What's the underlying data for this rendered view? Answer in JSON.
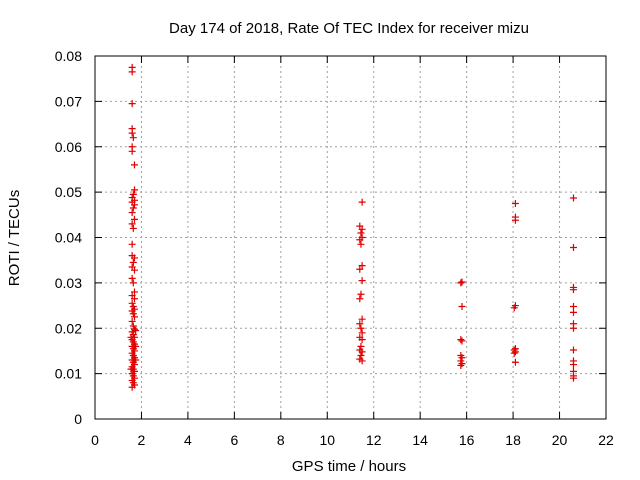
{
  "chart_data": {
    "type": "scatter",
    "title": "Day 174 of 2018, Rate Of TEC Index for receiver mizu",
    "xlabel": "GPS time / hours",
    "ylabel": "ROTI / TECUs",
    "xlim": [
      0,
      22
    ],
    "ylim": [
      0,
      0.08
    ],
    "xticks": [
      0,
      2,
      4,
      6,
      8,
      10,
      12,
      14,
      16,
      18,
      20,
      22
    ],
    "yticks": [
      0,
      0.01,
      0.02,
      0.03,
      0.04,
      0.05,
      0.06,
      0.07,
      0.08
    ],
    "xtick_labels": [
      "0",
      "2",
      "4",
      "6",
      "8",
      "10",
      "12",
      "14",
      "16",
      "18",
      "20",
      "22"
    ],
    "ytick_labels": [
      "0",
      "0.01",
      "0.02",
      "0.03",
      "0.04",
      "0.05",
      "0.06",
      "0.07",
      "0.08"
    ],
    "grid": true,
    "marker": "plus",
    "color": "#e00000",
    "series": [
      {
        "name": "ROTI",
        "points": [
          [
            1.6,
            0.0775
          ],
          [
            1.6,
            0.0765
          ],
          [
            1.6,
            0.0695
          ],
          [
            1.6,
            0.064
          ],
          [
            1.6,
            0.063
          ],
          [
            1.65,
            0.062
          ],
          [
            1.6,
            0.06
          ],
          [
            1.6,
            0.059
          ],
          [
            1.7,
            0.056
          ],
          [
            1.7,
            0.0505
          ],
          [
            1.65,
            0.0495
          ],
          [
            1.6,
            0.0488
          ],
          [
            1.7,
            0.0482
          ],
          [
            1.6,
            0.0478
          ],
          [
            1.7,
            0.0472
          ],
          [
            1.65,
            0.0465
          ],
          [
            1.6,
            0.0455
          ],
          [
            1.7,
            0.044
          ],
          [
            1.6,
            0.043
          ],
          [
            1.65,
            0.042
          ],
          [
            1.6,
            0.0385
          ],
          [
            1.6,
            0.036
          ],
          [
            1.7,
            0.0355
          ],
          [
            1.65,
            0.0345
          ],
          [
            1.6,
            0.0335
          ],
          [
            1.7,
            0.0328
          ],
          [
            1.6,
            0.031
          ],
          [
            1.65,
            0.03
          ],
          [
            1.7,
            0.028
          ],
          [
            1.6,
            0.0272
          ],
          [
            1.7,
            0.0265
          ],
          [
            1.6,
            0.0255
          ],
          [
            1.65,
            0.0248
          ],
          [
            1.7,
            0.0242
          ],
          [
            1.6,
            0.0238
          ],
          [
            1.65,
            0.0232
          ],
          [
            1.7,
            0.0225
          ],
          [
            1.6,
            0.0215
          ],
          [
            1.65,
            0.0205
          ],
          [
            1.7,
            0.0198
          ],
          [
            1.6,
            0.0192
          ],
          [
            1.65,
            0.0186
          ],
          [
            1.7,
            0.018
          ],
          [
            1.6,
            0.0175
          ],
          [
            1.65,
            0.017
          ],
          [
            1.7,
            0.0165
          ],
          [
            1.6,
            0.016
          ],
          [
            1.65,
            0.0155
          ],
          [
            1.7,
            0.015
          ],
          [
            1.6,
            0.0145
          ],
          [
            1.65,
            0.014
          ],
          [
            1.7,
            0.0135
          ],
          [
            1.6,
            0.013
          ],
          [
            1.65,
            0.0125
          ],
          [
            1.7,
            0.012
          ],
          [
            1.6,
            0.0115
          ],
          [
            1.65,
            0.011
          ],
          [
            1.7,
            0.0105
          ],
          [
            1.6,
            0.01
          ],
          [
            1.65,
            0.0095
          ],
          [
            1.7,
            0.009
          ],
          [
            1.6,
            0.0085
          ],
          [
            1.65,
            0.008
          ],
          [
            1.7,
            0.0075
          ],
          [
            1.6,
            0.007
          ],
          [
            1.75,
            0.016
          ],
          [
            1.75,
            0.013
          ],
          [
            1.55,
            0.018
          ],
          [
            1.55,
            0.011
          ],
          [
            1.75,
            0.0195
          ],
          [
            11.5,
            0.0478
          ],
          [
            11.4,
            0.0425
          ],
          [
            11.5,
            0.0418
          ],
          [
            11.45,
            0.041
          ],
          [
            11.5,
            0.04
          ],
          [
            11.4,
            0.0395
          ],
          [
            11.45,
            0.0385
          ],
          [
            11.5,
            0.0338
          ],
          [
            11.4,
            0.033
          ],
          [
            11.5,
            0.0305
          ],
          [
            11.45,
            0.0275
          ],
          [
            11.4,
            0.0265
          ],
          [
            11.5,
            0.022
          ],
          [
            11.4,
            0.021
          ],
          [
            11.45,
            0.02
          ],
          [
            11.5,
            0.019
          ],
          [
            11.4,
            0.018
          ],
          [
            11.5,
            0.0175
          ],
          [
            11.45,
            0.016
          ],
          [
            11.4,
            0.0152
          ],
          [
            11.5,
            0.0148
          ],
          [
            11.45,
            0.014
          ],
          [
            11.4,
            0.0132
          ],
          [
            11.5,
            0.0128
          ],
          [
            15.8,
            0.0302
          ],
          [
            15.75,
            0.03
          ],
          [
            15.8,
            0.0248
          ],
          [
            15.75,
            0.0175
          ],
          [
            15.8,
            0.0172
          ],
          [
            15.75,
            0.014
          ],
          [
            15.8,
            0.0135
          ],
          [
            15.75,
            0.0128
          ],
          [
            15.8,
            0.0122
          ],
          [
            15.75,
            0.0118
          ],
          [
            18.1,
            0.0475
          ],
          [
            18.1,
            0.0445
          ],
          [
            18.1,
            0.0438
          ],
          [
            18.1,
            0.025
          ],
          [
            18.05,
            0.0245
          ],
          [
            18.1,
            0.0155
          ],
          [
            18.05,
            0.0152
          ],
          [
            18.1,
            0.0148
          ],
          [
            18.05,
            0.0145
          ],
          [
            18.1,
            0.0125
          ],
          [
            20.6,
            0.0487
          ],
          [
            20.6,
            0.0378
          ],
          [
            20.6,
            0.029
          ],
          [
            20.6,
            0.0285
          ],
          [
            20.6,
            0.0248
          ],
          [
            20.6,
            0.0235
          ],
          [
            20.6,
            0.021
          ],
          [
            20.6,
            0.02
          ],
          [
            20.6,
            0.0152
          ],
          [
            20.6,
            0.0128
          ],
          [
            20.6,
            0.012
          ],
          [
            20.6,
            0.0105
          ],
          [
            20.6,
            0.0095
          ],
          [
            20.6,
            0.009
          ]
        ]
      }
    ]
  }
}
